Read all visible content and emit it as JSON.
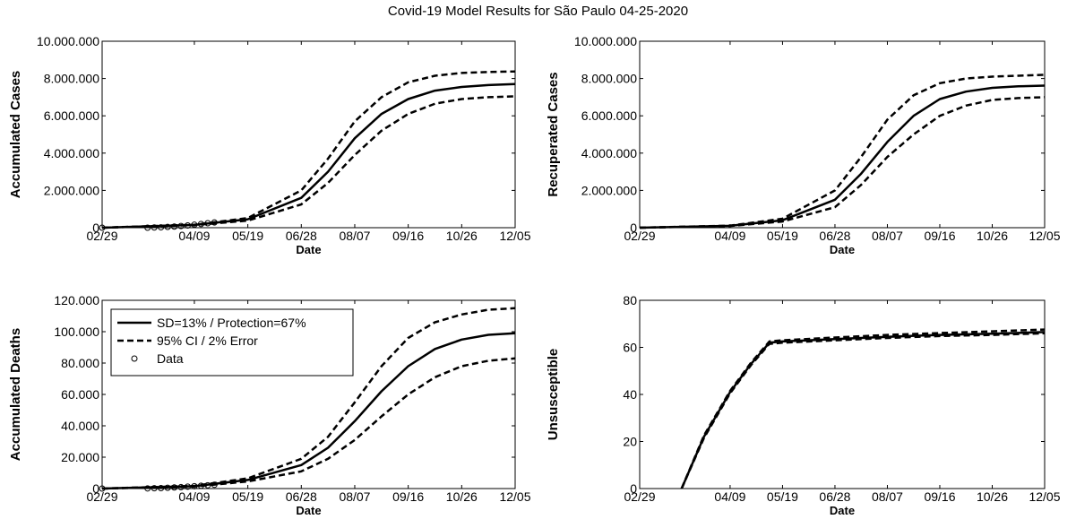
{
  "title": "Covid-19 Model Results for São Paulo 04-25-2020",
  "legend": {
    "entries": [
      {
        "label": "SD=13%  / Protection=67%",
        "style": "solid"
      },
      {
        "label": "95% CI    / 2% Error",
        "style": "dashed"
      },
      {
        "label": "Data",
        "style": "circle"
      }
    ],
    "placement": "top-left of Accumulated Deaths panel"
  },
  "colors": {
    "lines": "#000000",
    "background": "#ffffff"
  },
  "chart_data": [
    {
      "id": "accumulated-cases",
      "type": "line",
      "xlabel": "Date",
      "ylabel": "Accumulated Cases",
      "xlim": [
        "02/29",
        "12/05"
      ],
      "xticks": [
        "02/29",
        "04/09",
        "05/19",
        "06/28",
        "08/07",
        "09/16",
        "10/26",
        "12/05"
      ],
      "ylim": [
        0,
        10000000
      ],
      "yticks": [
        "0",
        "2.000.000",
        "4.000.000",
        "6.000.000",
        "8.000.000",
        "10.000.000"
      ],
      "grid": false,
      "series": [
        {
          "name": "SD=13%  / Protection=67%",
          "style": "solid",
          "x": [
            "02/29",
            "04/09",
            "05/19",
            "06/28",
            "07/18",
            "08/07",
            "08/27",
            "09/16",
            "10/06",
            "10/26",
            "11/15",
            "12/05"
          ],
          "y": [
            0,
            150000,
            450000,
            1600000,
            3000000,
            4800000,
            6100000,
            6900000,
            7350000,
            7550000,
            7650000,
            7700000
          ]
        },
        {
          "name": "95% CI    / 2% Error",
          "style": "dashed",
          "x": [
            "02/29",
            "04/09",
            "05/19",
            "06/28",
            "07/18",
            "08/07",
            "08/27",
            "09/16",
            "10/06",
            "10/26",
            "11/15",
            "12/05"
          ],
          "y": [
            0,
            160000,
            520000,
            2000000,
            3700000,
            5700000,
            7000000,
            7800000,
            8150000,
            8300000,
            8350000,
            8380000
          ]
        },
        {
          "name": "95% CI    / 2% Error",
          "style": "dashed",
          "x": [
            "02/29",
            "04/09",
            "05/19",
            "06/28",
            "07/18",
            "08/07",
            "08/27",
            "09/16",
            "10/06",
            "10/26",
            "11/15",
            "12/05"
          ],
          "y": [
            0,
            140000,
            380000,
            1250000,
            2400000,
            3900000,
            5200000,
            6100000,
            6650000,
            6900000,
            7000000,
            7050000
          ]
        },
        {
          "name": "Data",
          "style": "circle",
          "x": [
            "02/29",
            "03/05",
            "03/10",
            "03/15",
            "03/20",
            "03/25",
            "03/30",
            "04/04",
            "04/09",
            "04/14",
            "04/19",
            "04/24"
          ],
          "y": [
            0,
            0,
            10000,
            20000,
            40000,
            60000,
            90000,
            120000,
            160000,
            200000,
            240000,
            280000
          ]
        }
      ]
    },
    {
      "id": "recuperated-cases",
      "type": "line",
      "xlabel": "Date",
      "ylabel": "Recuperated Cases",
      "xlim": [
        "02/29",
        "12/05"
      ],
      "xticks": [
        "02/29",
        "04/09",
        "05/19",
        "06/28",
        "08/07",
        "09/16",
        "10/26",
        "12/05"
      ],
      "ylim": [
        0,
        10000000
      ],
      "yticks": [
        "0",
        "2.000.000",
        "4.000.000",
        "6.000.000",
        "8.000.000",
        "10.000.000"
      ],
      "grid": false,
      "series": [
        {
          "name": "SD=13%  / Protection=67%",
          "style": "solid",
          "x": [
            "02/29",
            "04/09",
            "05/19",
            "06/28",
            "07/18",
            "08/07",
            "08/27",
            "09/16",
            "10/06",
            "10/26",
            "11/15",
            "12/05"
          ],
          "y": [
            0,
            100000,
            400000,
            1500000,
            2900000,
            4600000,
            6000000,
            6900000,
            7300000,
            7500000,
            7580000,
            7620000
          ]
        },
        {
          "name": "95% CI    / 2% Error",
          "style": "dashed",
          "x": [
            "02/29",
            "04/09",
            "05/19",
            "06/28",
            "07/18",
            "08/07",
            "08/27",
            "09/16",
            "10/06",
            "10/26",
            "11/15",
            "12/05"
          ],
          "y": [
            0,
            110000,
            480000,
            2000000,
            3800000,
            5800000,
            7100000,
            7750000,
            8000000,
            8100000,
            8150000,
            8200000
          ]
        },
        {
          "name": "95% CI    / 2% Error",
          "style": "dashed",
          "x": [
            "02/29",
            "04/09",
            "05/19",
            "06/28",
            "07/18",
            "08/07",
            "08/27",
            "09/16",
            "10/06",
            "10/26",
            "11/15",
            "12/05"
          ],
          "y": [
            0,
            90000,
            330000,
            1100000,
            2300000,
            3800000,
            5000000,
            6000000,
            6550000,
            6850000,
            6950000,
            7000000
          ]
        }
      ]
    },
    {
      "id": "accumulated-deaths",
      "type": "line",
      "xlabel": "Date",
      "ylabel": "Accumulated Deaths",
      "xlim": [
        "02/29",
        "12/05"
      ],
      "xticks": [
        "02/29",
        "04/09",
        "05/19",
        "06/28",
        "08/07",
        "09/16",
        "10/26",
        "12/05"
      ],
      "ylim": [
        0,
        120000
      ],
      "yticks": [
        "0",
        "20.000",
        "40.000",
        "60.000",
        "80.000",
        "100.000",
        "120.000"
      ],
      "grid": false,
      "series": [
        {
          "name": "SD=13%  / Protection=67%",
          "style": "solid",
          "x": [
            "02/29",
            "04/09",
            "05/19",
            "06/28",
            "07/18",
            "08/07",
            "08/27",
            "09/16",
            "10/06",
            "10/26",
            "11/15",
            "12/05"
          ],
          "y": [
            0,
            1500,
            5500,
            15000,
            26000,
            43000,
            62000,
            78000,
            89000,
            95000,
            98000,
            99000
          ]
        },
        {
          "name": "95% CI    / 2% Error",
          "style": "dashed",
          "x": [
            "02/29",
            "04/09",
            "05/19",
            "06/28",
            "07/18",
            "08/07",
            "08/27",
            "09/16",
            "10/06",
            "10/26",
            "11/15",
            "12/05"
          ],
          "y": [
            0,
            1700,
            6500,
            19000,
            33000,
            55000,
            78000,
            96000,
            106000,
            111000,
            114000,
            115000
          ]
        },
        {
          "name": "95% CI    / 2% Error",
          "style": "dashed",
          "x": [
            "02/29",
            "04/09",
            "05/19",
            "06/28",
            "07/18",
            "08/07",
            "08/27",
            "09/16",
            "10/06",
            "10/26",
            "11/15",
            "12/05"
          ],
          "y": [
            0,
            1300,
            4500,
            11000,
            19000,
            31000,
            46000,
            60000,
            71000,
            78000,
            81500,
            83000
          ]
        },
        {
          "name": "Data",
          "style": "circle",
          "x": [
            "02/29",
            "03/05",
            "03/10",
            "03/15",
            "03/20",
            "03/25",
            "03/30",
            "04/04",
            "04/09",
            "04/14",
            "04/19",
            "04/24"
          ],
          "y": [
            0,
            100,
            200,
            300,
            500,
            700,
            900,
            1200,
            1500,
            1800,
            2100,
            2400
          ]
        }
      ]
    },
    {
      "id": "unsusceptible",
      "type": "line",
      "xlabel": "Date",
      "ylabel": "Unsusceptible",
      "xlim": [
        "02/29",
        "12/05"
      ],
      "xticks": [
        "02/29",
        "04/09",
        "05/19",
        "06/28",
        "08/07",
        "09/16",
        "10/26",
        "12/05"
      ],
      "ylim": [
        0,
        80
      ],
      "yticks": [
        "0",
        "20",
        "40",
        "60",
        "80"
      ],
      "grid": false,
      "series": [
        {
          "name": "SD=13%  / Protection=67%",
          "style": "solid",
          "x": [
            "03/03",
            "03/20",
            "04/09",
            "04/25",
            "05/09",
            "05/19",
            "06/28",
            "08/07",
            "09/16",
            "10/26",
            "12/05"
          ],
          "y": [
            0,
            22,
            41,
            53,
            62,
            62.5,
            63.5,
            64.5,
            65.3,
            65.8,
            66.5
          ]
        },
        {
          "name": "95% CI    / 2% Error",
          "style": "dashed",
          "x": [
            "03/03",
            "03/20",
            "04/09",
            "04/25",
            "05/09",
            "05/19",
            "06/28",
            "08/07",
            "09/16",
            "10/26",
            "12/05"
          ],
          "y": [
            0,
            22.5,
            41.5,
            53.5,
            62.5,
            63,
            64.2,
            65.3,
            66.1,
            66.8,
            67.6
          ]
        },
        {
          "name": "95% CI    / 2% Error",
          "style": "dashed",
          "x": [
            "03/03",
            "03/20",
            "04/09",
            "04/25",
            "05/09",
            "05/19",
            "06/28",
            "08/07",
            "09/16",
            "10/26",
            "12/05"
          ],
          "y": [
            0,
            21.5,
            40.5,
            52.5,
            61.5,
            62,
            63,
            64,
            64.8,
            65.3,
            66
          ]
        }
      ]
    }
  ]
}
